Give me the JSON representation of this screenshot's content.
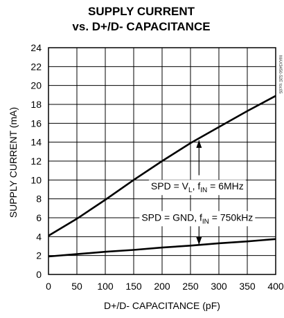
{
  "chart_data": {
    "type": "line",
    "title_line1": "SUPPLY CURRENT",
    "title_line2": "vs. D+/D- CAPACITANCE",
    "xlabel": "D+/D- CAPACITANCE (pF)",
    "ylabel": "SUPPLY CURRENT (mA)",
    "xlim": [
      0,
      400
    ],
    "ylim": [
      0,
      24
    ],
    "xticks": [
      0,
      50,
      100,
      150,
      200,
      250,
      300,
      350,
      400
    ],
    "yticks": [
      0,
      2,
      4,
      6,
      8,
      10,
      12,
      14,
      16,
      18,
      20,
      22,
      24
    ],
    "grid": true,
    "watermark": "MAX3450-52E toc05",
    "series": [
      {
        "name": "SPD = VL, fIN = 6MHz",
        "label": {
          "pre": "SPD = V",
          "sub1": "L",
          "mid": ", f",
          "sub2": "IN",
          "post": " = 6MHz"
        },
        "x": [
          0,
          50,
          100,
          150,
          200,
          250,
          300,
          350,
          400
        ],
        "values": [
          4.1,
          5.9,
          7.9,
          10.0,
          12.0,
          13.9,
          15.6,
          17.3,
          18.9
        ]
      },
      {
        "name": "SPD = GND, fIN = 750kHz",
        "label": {
          "pre": "SPD = GND, f",
          "sub1": "IN",
          "mid": " = 750kHz",
          "sub2": "",
          "post": ""
        },
        "x": [
          0,
          50,
          100,
          150,
          200,
          250,
          300,
          350,
          400
        ],
        "values": [
          1.9,
          2.15,
          2.4,
          2.6,
          2.85,
          3.05,
          3.3,
          3.5,
          3.75
        ]
      }
    ],
    "annotations": [
      {
        "series": 0,
        "arrow_x": 265,
        "arrow_from_y": 10.5,
        "arrow_to_y": 14.2,
        "label_x": 262,
        "label_y": 9.35
      },
      {
        "series": 1,
        "arrow_x": 265,
        "arrow_from_y": 5.5,
        "arrow_to_y": 3.15,
        "label_x": 262,
        "label_y": 6.05
      }
    ]
  }
}
